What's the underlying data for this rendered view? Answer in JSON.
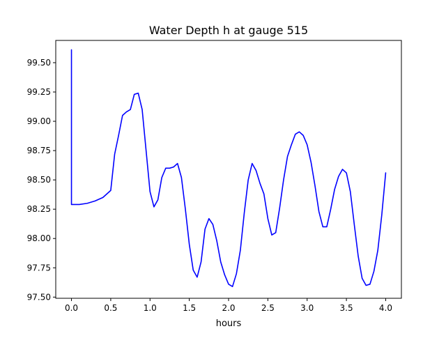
{
  "chart_data": {
    "type": "line",
    "title": "Water Depth h at gauge 515",
    "xlabel": "hours",
    "ylabel": "",
    "xlim": [
      -0.2,
      4.2
    ],
    "ylim": [
      97.49,
      99.69
    ],
    "grid": false,
    "legend": "none",
    "x_ticks": [
      0.0,
      0.5,
      1.0,
      1.5,
      2.0,
      2.5,
      3.0,
      3.5,
      4.0
    ],
    "x_tick_labels": [
      "0.0",
      "0.5",
      "1.0",
      "1.5",
      "2.0",
      "2.5",
      "3.0",
      "3.5",
      "4.0"
    ],
    "y_ticks": [
      97.5,
      97.75,
      98.0,
      98.25,
      98.5,
      98.75,
      99.0,
      99.25,
      99.5
    ],
    "y_tick_labels": [
      "97.50",
      "97.75",
      "98.00",
      "98.25",
      "98.50",
      "98.75",
      "99.00",
      "99.25",
      "99.50"
    ],
    "series": [
      {
        "color": "#0000ff",
        "points": [
          [
            0.0,
            99.61
          ],
          [
            0.0,
            98.29
          ],
          [
            0.1,
            98.29
          ],
          [
            0.2,
            98.3
          ],
          [
            0.3,
            98.32
          ],
          [
            0.4,
            98.35
          ],
          [
            0.5,
            98.41
          ],
          [
            0.55,
            98.72
          ],
          [
            0.6,
            98.88
          ],
          [
            0.65,
            99.05
          ],
          [
            0.7,
            99.08
          ],
          [
            0.75,
            99.1
          ],
          [
            0.8,
            99.23
          ],
          [
            0.85,
            99.24
          ],
          [
            0.9,
            99.1
          ],
          [
            0.95,
            98.75
          ],
          [
            1.0,
            98.4
          ],
          [
            1.05,
            98.27
          ],
          [
            1.1,
            98.33
          ],
          [
            1.15,
            98.52
          ],
          [
            1.2,
            98.6
          ],
          [
            1.25,
            98.6
          ],
          [
            1.3,
            98.61
          ],
          [
            1.35,
            98.64
          ],
          [
            1.4,
            98.52
          ],
          [
            1.45,
            98.25
          ],
          [
            1.5,
            97.95
          ],
          [
            1.55,
            97.73
          ],
          [
            1.6,
            97.67
          ],
          [
            1.65,
            97.8
          ],
          [
            1.7,
            98.08
          ],
          [
            1.75,
            98.17
          ],
          [
            1.8,
            98.12
          ],
          [
            1.85,
            97.98
          ],
          [
            1.9,
            97.8
          ],
          [
            1.95,
            97.69
          ],
          [
            2.0,
            97.61
          ],
          [
            2.05,
            97.59
          ],
          [
            2.1,
            97.7
          ],
          [
            2.15,
            97.9
          ],
          [
            2.2,
            98.22
          ],
          [
            2.25,
            98.5
          ],
          [
            2.3,
            98.64
          ],
          [
            2.35,
            98.58
          ],
          [
            2.4,
            98.47
          ],
          [
            2.45,
            98.38
          ],
          [
            2.5,
            98.17
          ],
          [
            2.55,
            98.03
          ],
          [
            2.6,
            98.05
          ],
          [
            2.65,
            98.26
          ],
          [
            2.7,
            98.5
          ],
          [
            2.75,
            98.7
          ],
          [
            2.8,
            98.8
          ],
          [
            2.85,
            98.89
          ],
          [
            2.9,
            98.91
          ],
          [
            2.95,
            98.88
          ],
          [
            3.0,
            98.8
          ],
          [
            3.05,
            98.65
          ],
          [
            3.1,
            98.45
          ],
          [
            3.15,
            98.23
          ],
          [
            3.2,
            98.1
          ],
          [
            3.25,
            98.1
          ],
          [
            3.3,
            98.25
          ],
          [
            3.35,
            98.42
          ],
          [
            3.4,
            98.53
          ],
          [
            3.45,
            98.59
          ],
          [
            3.5,
            98.56
          ],
          [
            3.55,
            98.4
          ],
          [
            3.6,
            98.12
          ],
          [
            3.65,
            97.85
          ],
          [
            3.7,
            97.66
          ],
          [
            3.75,
            97.6
          ],
          [
            3.8,
            97.61
          ],
          [
            3.85,
            97.72
          ],
          [
            3.9,
            97.9
          ],
          [
            3.95,
            98.2
          ],
          [
            4.0,
            98.56
          ]
        ]
      }
    ]
  }
}
